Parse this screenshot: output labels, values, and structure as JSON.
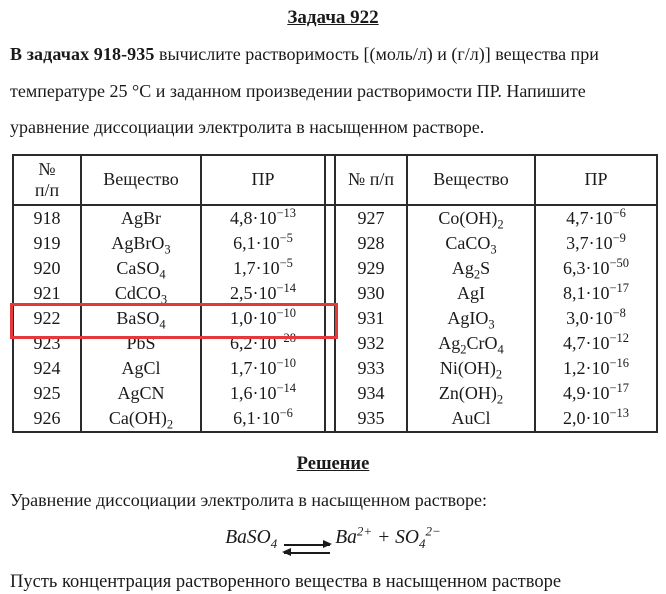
{
  "document": {
    "title": "Задача 922",
    "intro": {
      "bold": "В задачах 918-935",
      "text": " вычислите растворимость [(моль/л) и (г/л)] вещества при температуре 25 °С и заданном произведении растворимости ПР. Напишите уравнение диссоциации электролита в насыщенном растворе."
    }
  },
  "table": {
    "left": {
      "header": {
        "num_line1": "№",
        "num_line2": "п/п",
        "substance": "Вещество",
        "pr": "ПР"
      },
      "rows": [
        {
          "num": "918",
          "formula": "AgBr",
          "pr": "4,8·10^−13"
        },
        {
          "num": "919",
          "formula": "AgBrO_3",
          "pr": "6,1·10^−5"
        },
        {
          "num": "920",
          "formula": "CaSO_4",
          "pr": "1,7·10^−5"
        },
        {
          "num": "921",
          "formula": "CdCO_3",
          "pr": "2,5·10^−14"
        },
        {
          "num": "922",
          "formula": "BaSO_4",
          "pr": "1,0·10^−10",
          "highlighted": true
        },
        {
          "num": "923",
          "formula": "PbS",
          "pr": "6,2·10^−28"
        },
        {
          "num": "924",
          "formula": "AgCl",
          "pr": "1,7·10^−10"
        },
        {
          "num": "925",
          "formula": "AgCN",
          "pr": "1,6·10^−14"
        },
        {
          "num": "926",
          "formula": "Ca(OH)_2",
          "pr": "6,1·10^−6"
        }
      ]
    },
    "right": {
      "header": {
        "num": "№ п/п",
        "substance": "Вещество",
        "pr": "ПР"
      },
      "rows": [
        {
          "num": "927",
          "formula": "Co(OH)_2",
          "pr": "4,7·10^−6"
        },
        {
          "num": "928",
          "formula": "CaCO_3",
          "pr": "3,7·10^−9"
        },
        {
          "num": "929",
          "formula": "Ag_2S",
          "pr": "6,3·10^−50"
        },
        {
          "num": "930",
          "formula": "AgI",
          "pr": "8,1·10^−17"
        },
        {
          "num": "931",
          "formula": "AgIO_3",
          "pr": "3,0·10^−8"
        },
        {
          "num": "932",
          "formula": "Ag_2CrO_4",
          "pr": "4,7·10^−12"
        },
        {
          "num": "933",
          "formula": "Ni(OH)_2",
          "pr": "1,2·10^−16"
        },
        {
          "num": "934",
          "formula": "Zn(OH)_2",
          "pr": "4,9·10^−17"
        },
        {
          "num": "935",
          "formula": "AuCl",
          "pr": "2,0·10^−13"
        }
      ]
    },
    "highlighted_row_num": "922",
    "highlight_color": "#e4383b"
  },
  "solution": {
    "heading": "Решение",
    "intro_line": "Уравнение диссоциации электролита в насыщенном растворе:",
    "equation": {
      "left": "BaSO_4",
      "equilibrium_symbol": "⇌",
      "right": "Ba^2+ + SO_4^2−"
    },
    "following_line": "Пусть концентрация растворенного вещества в насыщенном растворе"
  }
}
